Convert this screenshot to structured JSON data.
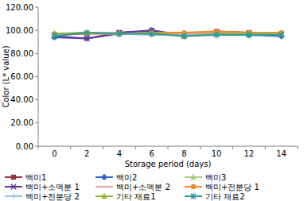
{
  "chart_data": {
    "type": "line",
    "x_label": "Storage period (days)",
    "y_label": "Color  (L* value)",
    "categories": [
      "0",
      "2",
      "4",
      "6",
      "8",
      "10",
      "12",
      "14"
    ],
    "ylim": [
      0,
      120
    ],
    "yticks": [
      {
        "value": 0,
        "label": "0.00"
      },
      {
        "value": 20,
        "label": "20.00"
      },
      {
        "value": 40,
        "label": "40.00"
      },
      {
        "value": 60,
        "label": "60.00"
      },
      {
        "value": 80,
        "label": "80.00"
      },
      {
        "value": 100,
        "label": "100.00"
      },
      {
        "value": 120,
        "label": "120.00"
      }
    ],
    "grid": false,
    "legend": "bottom",
    "series": [
      {
        "name": "백미1",
        "color": "#993333",
        "marker": "square",
        "values": [
          96,
          97,
          98,
          99,
          96,
          99,
          98,
          97
        ]
      },
      {
        "name": "백미2",
        "color": "#3366cc",
        "marker": "diamond",
        "values": [
          94,
          93,
          97,
          100,
          95,
          98,
          96,
          95
        ]
      },
      {
        "name": "백미3",
        "color": "#a6cc80",
        "marker": "triangle",
        "values": [
          97,
          98,
          98,
          97,
          97,
          98,
          98,
          98
        ]
      },
      {
        "name": "백미+소맥분 1",
        "color": "#663399",
        "marker": "x",
        "values": [
          95,
          93,
          98,
          100,
          96,
          98,
          97,
          96
        ]
      },
      {
        "name": "백미+소맥분 2",
        "color": "#e8a0a0",
        "marker": "none",
        "values": [
          97,
          97,
          97,
          98,
          97,
          98,
          97,
          97
        ]
      },
      {
        "name": "백미+전분당 1",
        "color": "#f08a24",
        "marker": "circle",
        "values": [
          97,
          97,
          97,
          98,
          98,
          99,
          98,
          98
        ]
      },
      {
        "name": "백미+전분당 2",
        "color": "#99bbee",
        "marker": "plus",
        "values": [
          96,
          98,
          97,
          96,
          96,
          97,
          97,
          97
        ]
      },
      {
        "name": "기타 재료1",
        "color": "#8fb33a",
        "marker": "triangle",
        "values": [
          97,
          98,
          97,
          98,
          95,
          97,
          97,
          97
        ]
      },
      {
        "name": "기타 재료2",
        "color": "#339999",
        "marker": "star",
        "values": [
          95,
          98,
          97,
          97,
          95,
          96,
          96,
          96
        ]
      }
    ]
  }
}
